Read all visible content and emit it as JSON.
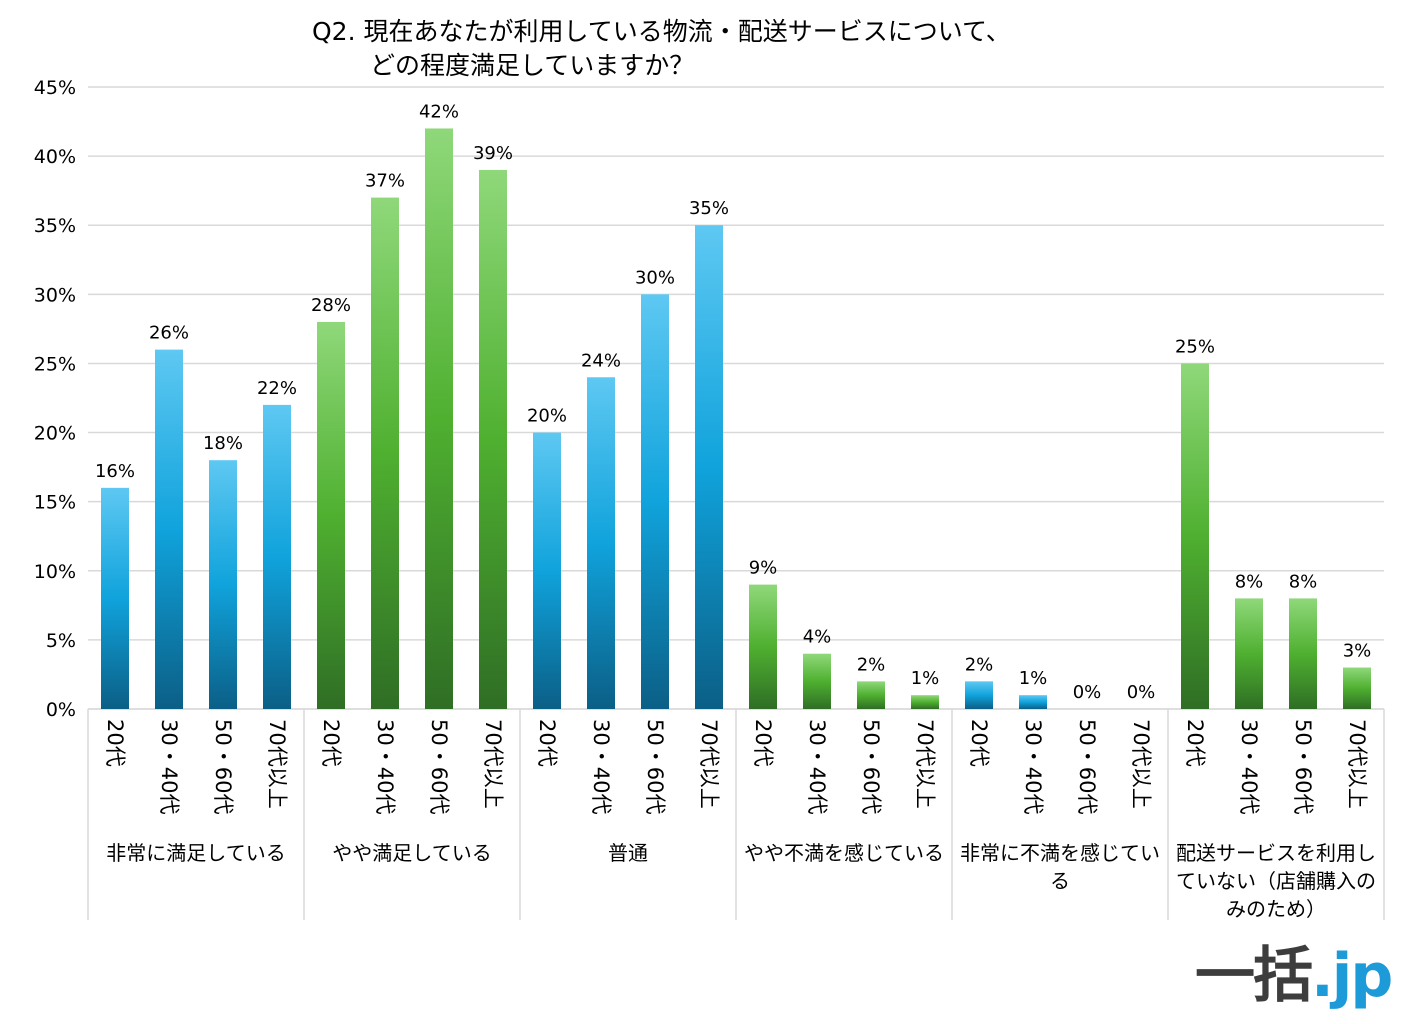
{
  "chart_data": {
    "type": "bar",
    "title_lines": [
      "Q2. 現在あなたが利用している物流・配送サービスについて、",
      "どの程度満足していますか？"
    ],
    "ylim": [
      0,
      45
    ],
    "yticks": [
      0,
      5,
      10,
      15,
      20,
      25,
      30,
      35,
      40,
      45
    ],
    "ytick_labels": [
      "0%",
      "5%",
      "10%",
      "15%",
      "20%",
      "25%",
      "30%",
      "35%",
      "40%",
      "45%"
    ],
    "grid": true,
    "legend": "none",
    "age_labels": [
      "20代",
      "30・40代",
      "50・60代",
      "70代以上"
    ],
    "groups": [
      {
        "label_lines": [
          "非常に満足している"
        ],
        "color": "blue",
        "values": [
          16,
          26,
          18,
          22
        ],
        "value_labels": [
          "16%",
          "26%",
          "18%",
          "22%"
        ]
      },
      {
        "label_lines": [
          "やや満足している"
        ],
        "color": "green",
        "values": [
          28,
          37,
          42,
          39
        ],
        "value_labels": [
          "28%",
          "37%",
          "42%",
          "39%"
        ]
      },
      {
        "label_lines": [
          "普通"
        ],
        "color": "blue",
        "values": [
          20,
          24,
          30,
          35
        ],
        "value_labels": [
          "20%",
          "24%",
          "30%",
          "35%"
        ]
      },
      {
        "label_lines": [
          "やや不満を感じている"
        ],
        "color": "green",
        "values": [
          9,
          4,
          2,
          1
        ],
        "value_labels": [
          "9%",
          "4%",
          "2%",
          "1%"
        ]
      },
      {
        "label_lines": [
          "非常に不満を感じてい",
          "る"
        ],
        "color": "blue",
        "values": [
          2,
          1,
          0,
          0
        ],
        "value_labels": [
          "2%",
          "1%",
          "0%",
          "0%"
        ]
      },
      {
        "label_lines": [
          "配送サービスを利用し",
          "ていない（店舗購入の",
          "みのため）"
        ],
        "color": "green",
        "values": [
          25,
          8,
          8,
          3
        ],
        "value_labels": [
          "25%",
          "8%",
          "8%",
          "3%"
        ]
      }
    ],
    "colors": {
      "blue_top": "#5ec8f2",
      "blue_mid": "#10a3dc",
      "blue_bottom": "#0b5f86",
      "green_top": "#8fd87a",
      "green_mid": "#4fb030",
      "green_bottom": "#2f6e25",
      "grid": "#d9d9d9"
    }
  },
  "logo": {
    "part1": "一括",
    "part2": ".",
    "part3": "jp"
  }
}
